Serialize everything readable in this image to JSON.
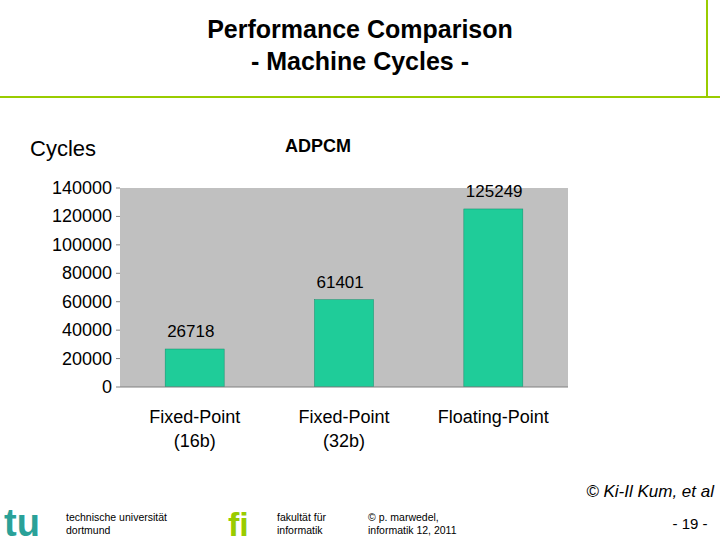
{
  "slide": {
    "title": "Performance Comparison",
    "subtitle": "- Machine Cycles -",
    "credit": "© Ki-Il Kum, et al",
    "footer": {
      "logo_left": "tu",
      "university": [
        "technische universität",
        "dortmund"
      ],
      "logo_right": "fi",
      "faculty": [
        "fakultät für",
        "informatik"
      ],
      "copyright": [
        "© p. marwedel,",
        "informatik 12, 2011"
      ],
      "page": "- 19 -"
    }
  },
  "chart_data": {
    "type": "bar",
    "title": "ADPCM",
    "y_label": "Cycles",
    "categories": [
      "Fixed-Point\n(16b)",
      "Fixed-Point\n(32b)",
      "Floating-Point"
    ],
    "values": [
      26718,
      61401,
      125249
    ],
    "color": "#1fcc99",
    "ylim": [
      0,
      140000
    ],
    "yticks": [
      0,
      20000,
      40000,
      60000,
      80000,
      100000,
      120000,
      140000
    ],
    "grid": false,
    "data_labels": true
  }
}
